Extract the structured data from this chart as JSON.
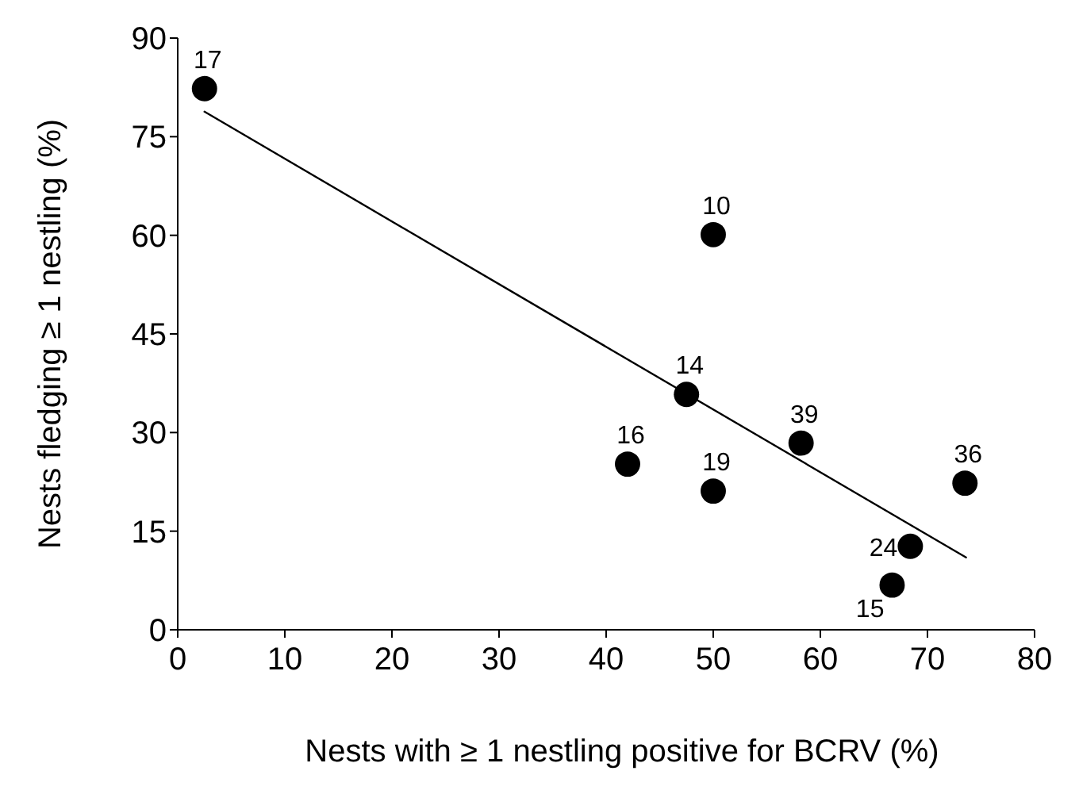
{
  "chart_data": {
    "type": "scatter",
    "xlabel": "Nests with ≥ 1 nestling positive for BCRV (%)",
    "ylabel": "Nests fledging ≥ 1 nestling (%)",
    "xlim": [
      0,
      80
    ],
    "xticks": [
      0,
      10,
      20,
      30,
      40,
      50,
      60,
      70,
      80
    ],
    "ylim": [
      0,
      90
    ],
    "yticks": [
      0,
      15,
      30,
      45,
      60,
      75,
      90
    ],
    "grid": false,
    "marker": "circle",
    "series": [
      {
        "color": "#000000",
        "x": [
          2.5,
          50,
          47.5,
          58.2,
          42,
          50,
          73.5,
          68.4,
          66.7
        ],
        "values": [
          82.3,
          60.1,
          35.8,
          28.4,
          25.2,
          21.1,
          22.3,
          12.7,
          6.8
        ]
      },
      {
        "type": "line",
        "color": "#000000",
        "x": [
          2.5,
          73.6
        ],
        "values": [
          78.8,
          11.0
        ],
        "marker": "none",
        "line_style": "solid"
      }
    ],
    "annotations": [
      {
        "text": "17",
        "x": 2.5,
        "y": 82.3
      },
      {
        "text": "10",
        "x": 50,
        "y": 60.1
      },
      {
        "text": "14",
        "x": 47.5,
        "y": 35.8
      },
      {
        "text": "39",
        "x": 58.2,
        "y": 28.4
      },
      {
        "text": "16",
        "x": 42,
        "y": 25.2
      },
      {
        "text": "19",
        "x": 50,
        "y": 21.1
      },
      {
        "text": "36",
        "x": 73.5,
        "y": 22.3
      },
      {
        "text": "24",
        "x": 68.4,
        "y": 12.7
      },
      {
        "text": "15",
        "x": 66.7,
        "y": 6.8
      }
    ]
  }
}
